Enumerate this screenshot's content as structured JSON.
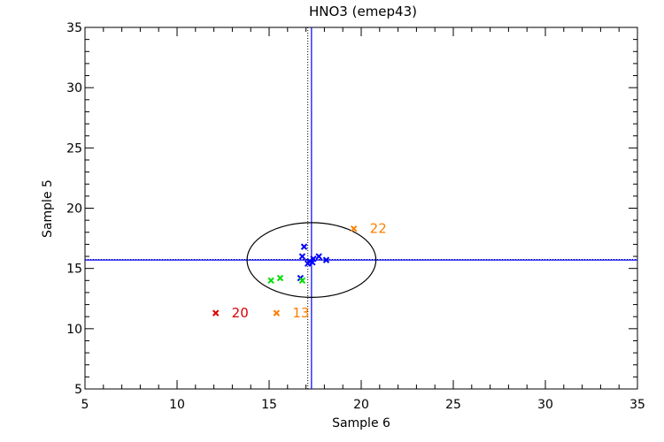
{
  "chart_data": {
    "type": "scatter",
    "title": "HNO3 (emep43)",
    "xlabel": "Sample 6",
    "ylabel": "Sample 5",
    "xlim": [
      5,
      35
    ],
    "ylim": [
      5,
      35
    ],
    "xticks": [
      5,
      10,
      15,
      20,
      25,
      30,
      35
    ],
    "yticks": [
      5,
      10,
      15,
      20,
      25,
      30,
      35
    ],
    "xtick_labels": [
      "5",
      "10",
      "15",
      "20",
      "25",
      "30",
      "35"
    ],
    "ytick_labels": [
      "5",
      "10",
      "15",
      "20",
      "25",
      "30",
      "35"
    ],
    "mean_lines": {
      "x_mean": 17.3,
      "y_mean": 15.7,
      "x_median_dotted": 17.1,
      "y_median_dotted": 15.75,
      "color": "#0000ff"
    },
    "ellipse": {
      "cx": 17.3,
      "cy": 15.7,
      "rx": 3.5,
      "ry": 3.1,
      "color": "#000000"
    },
    "series": [
      {
        "name": "blue",
        "color": "#0000ff",
        "points": [
          {
            "x": 16.9,
            "y": 16.8
          },
          {
            "x": 16.8,
            "y": 16.0
          },
          {
            "x": 17.1,
            "y": 15.4
          },
          {
            "x": 17.2,
            "y": 15.6
          },
          {
            "x": 17.35,
            "y": 15.5
          },
          {
            "x": 17.4,
            "y": 15.8
          },
          {
            "x": 17.7,
            "y": 16.0
          },
          {
            "x": 18.1,
            "y": 15.7
          },
          {
            "x": 16.7,
            "y": 14.2
          }
        ]
      },
      {
        "name": "green",
        "color": "#00dd00",
        "points": [
          {
            "x": 15.1,
            "y": 14.0
          },
          {
            "x": 15.6,
            "y": 14.2
          },
          {
            "x": 16.8,
            "y": 14.0
          }
        ]
      },
      {
        "name": "orange",
        "color": "#ff7f00",
        "points": [
          {
            "x": 19.6,
            "y": 18.3,
            "label": "22"
          },
          {
            "x": 15.4,
            "y": 11.3,
            "label": "13"
          }
        ]
      },
      {
        "name": "red",
        "color": "#dd0000",
        "points": [
          {
            "x": 12.1,
            "y": 11.3,
            "label": "20"
          }
        ]
      }
    ]
  }
}
